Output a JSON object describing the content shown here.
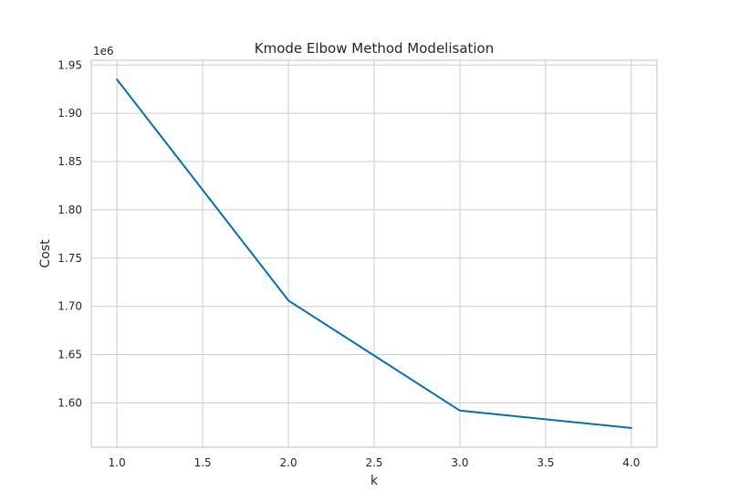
{
  "chart_data": {
    "type": "line",
    "title": "Kmode Elbow Method Modelisation",
    "xlabel": "k",
    "ylabel": "Cost",
    "y_offset_label": "1e6",
    "xlim": [
      0.85,
      4.15
    ],
    "ylim": [
      1.554,
      1.955
    ],
    "x_ticks": [
      1.0,
      1.5,
      2.0,
      2.5,
      3.0,
      3.5,
      4.0
    ],
    "x_tick_labels": [
      "1.0",
      "1.5",
      "2.0",
      "2.5",
      "3.0",
      "3.5",
      "4.0"
    ],
    "y_ticks": [
      1.6,
      1.65,
      1.7,
      1.75,
      1.8,
      1.85,
      1.9,
      1.95
    ],
    "y_tick_labels": [
      "1.60",
      "1.65",
      "1.70",
      "1.75",
      "1.80",
      "1.85",
      "1.90",
      "1.95"
    ],
    "grid": true,
    "series": [
      {
        "color": "#0072b2",
        "x": [
          1.0,
          2.0,
          3.0,
          4.0
        ],
        "y": [
          1.935,
          1.706,
          1.592,
          1.574
        ]
      }
    ]
  }
}
